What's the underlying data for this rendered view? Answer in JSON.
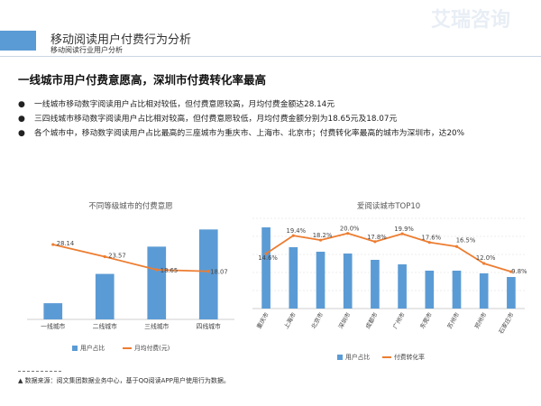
{
  "header": {
    "title": "移动阅读用户付费行为分析",
    "subtitle": "移动阅读行业用户分析",
    "watermark": "艾瑞咨询",
    "accent": "#5b9bd5"
  },
  "headline": "一线城市用户付费意愿高，深圳市付费转化率最高",
  "bullets": [
    {
      "text": "一线城市移动数字阅读用户占比相对较低，但付费意愿较高，月均付费金额达28.14元"
    },
    {
      "text": "三四线城市移动数字阅读用户占比相对较高，但付费意愿较低，月均付费金额分别为18.65元及18.07元"
    },
    {
      "text": "各个城市中，移动数字阅读用户占比最高的三座城市为重庆市、上海市、北京市；付费转化率最高的城市为深圳市，达20%"
    }
  ],
  "chart_data": [
    {
      "type": "bar",
      "title": "不同等级城市的付费意愿",
      "categories": [
        "一线城市",
        "二线城市",
        "三线城市",
        "四线城市"
      ],
      "series": [
        {
          "name": "用户占比",
          "kind": "bar",
          "values": [
            0.16,
            0.45,
            0.72,
            0.89
          ],
          "color": "#5b9bd5"
        },
        {
          "name": "月均付费(元)",
          "kind": "line",
          "values": [
            28.14,
            23.57,
            18.65,
            18.07
          ],
          "labels": [
            "28.14",
            "23.57",
            "18.65",
            "18.07"
          ],
          "color": "#ed7d31"
        }
      ],
      "legend": "bottom",
      "grid": false
    },
    {
      "type": "bar",
      "title": "爱阅读城市TOP10",
      "categories": [
        "重庆市",
        "上海市",
        "北京市",
        "深圳市",
        "成都市",
        "广州市",
        "东莞市",
        "苏州市",
        "郑州市",
        "石家庄市"
      ],
      "series": [
        {
          "name": "用户占比",
          "kind": "bar",
          "values": [
            0.9,
            0.68,
            0.63,
            0.61,
            0.54,
            0.49,
            0.42,
            0.42,
            0.39,
            0.35
          ],
          "color": "#5b9bd5"
        },
        {
          "name": "付费转化率",
          "kind": "line",
          "values": [
            14.6,
            19.4,
            18.2,
            20.0,
            17.8,
            19.9,
            17.6,
            16.5,
            12.0,
            9.8
          ],
          "labels": [
            "14.6%",
            "19.4%",
            "18.2%",
            "20.0%",
            "17.8%",
            "19.9%",
            "17.6%",
            "16.5%",
            "12.0%",
            "9.8%"
          ],
          "color": "#ed7d31"
        }
      ],
      "legend": "bottom",
      "grid": true
    }
  ],
  "footnote": "▲ 数据来源：阅文集团数据业务中心，基于QQ阅读APP用户使用行为数据。"
}
